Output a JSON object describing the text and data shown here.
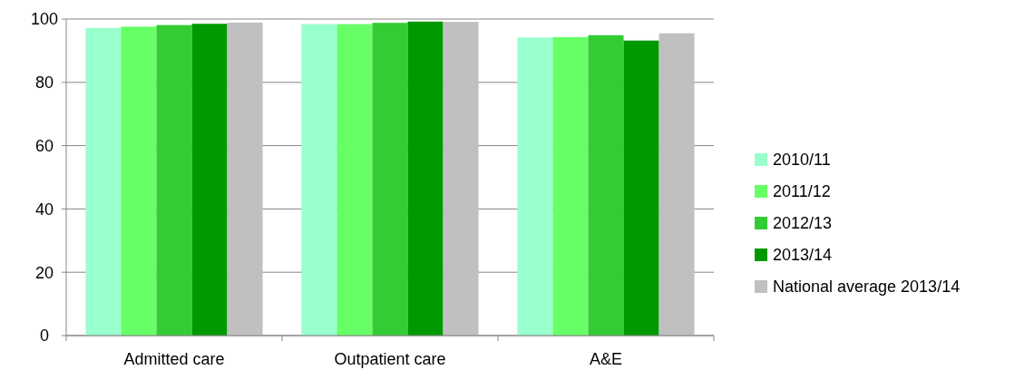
{
  "chart_data": {
    "type": "bar",
    "categories": [
      "Admitted care",
      "Outpatient care",
      "A&E"
    ],
    "series": [
      {
        "name": "2010/11",
        "color": "#99ffcc",
        "values": [
          97.2,
          98.4,
          94.2
        ]
      },
      {
        "name": "2011/12",
        "color": "#66ff66",
        "values": [
          97.6,
          98.4,
          94.3
        ]
      },
      {
        "name": "2012/13",
        "color": "#33cc33",
        "values": [
          98.1,
          98.8,
          94.9
        ]
      },
      {
        "name": "2013/14",
        "color": "#009900",
        "values": [
          98.5,
          99.2,
          93.2
        ]
      },
      {
        "name": "National average 2013/14",
        "color": "#c0c0c0",
        "values": [
          98.9,
          99.1,
          95.5
        ]
      }
    ],
    "ylim": [
      0,
      100
    ],
    "yticks": [
      0,
      20,
      40,
      60,
      80,
      100
    ],
    "grid": "y",
    "legend": "right"
  }
}
